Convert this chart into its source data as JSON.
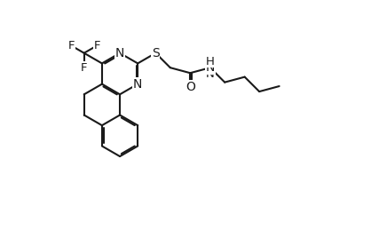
{
  "figsize": [
    4.18,
    2.77
  ],
  "dpi": 100,
  "bg": "#ffffff",
  "lc": "#1a1a1a",
  "lw": 1.5,
  "xlim": [
    0,
    10
  ],
  "ylim": [
    0,
    6.6
  ],
  "BL": 0.72
}
